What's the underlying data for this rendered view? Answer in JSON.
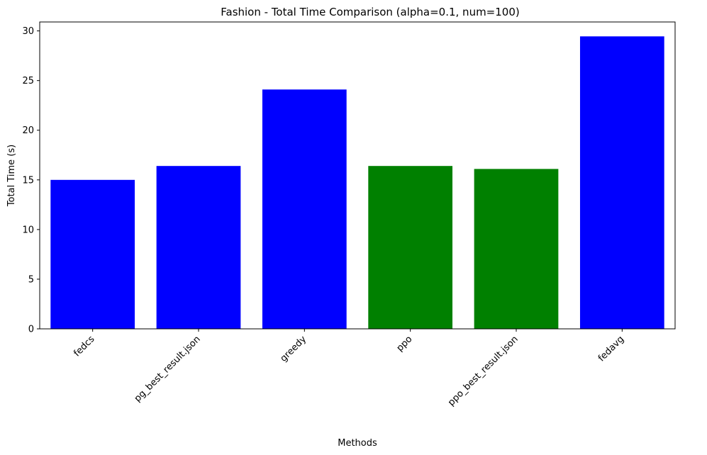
{
  "chart_data": {
    "type": "bar",
    "title": "Fashion - Total Time Comparison (alpha=0.1, num=100)",
    "xlabel": "Methods",
    "ylabel": "Total Time (s)",
    "categories": [
      "fedcs",
      "pg_best_result.json",
      "greedy",
      "ppo",
      "ppo_best_result.json",
      "fedavg"
    ],
    "values": [
      15.0,
      16.4,
      24.1,
      16.4,
      16.1,
      29.45
    ],
    "bar_colors": [
      "#0000ff",
      "#0000ff",
      "#0000ff",
      "#008000",
      "#008000",
      "#0000ff"
    ],
    "ylim": [
      0,
      30.9
    ],
    "yticks": [
      0,
      5,
      10,
      15,
      20,
      25,
      30
    ],
    "grid": false,
    "legend": "none",
    "x_tick_rotation": 45
  }
}
